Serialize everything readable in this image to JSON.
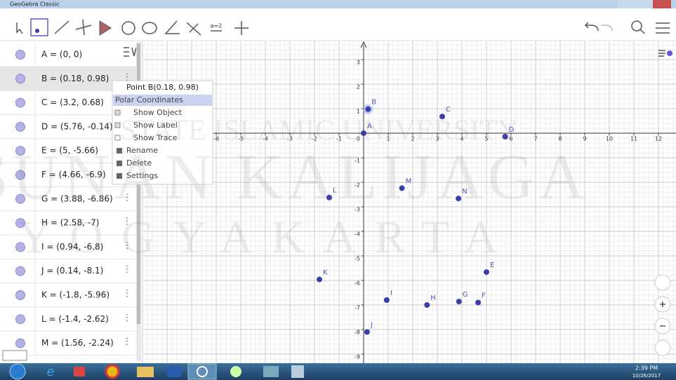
{
  "window": {
    "title": "GeoGebra Classic"
  },
  "toolbar": {
    "slider_icon": "a=2"
  },
  "algebra_view": {
    "rows": [
      "A = (0, 0)",
      "B = (0.18, 0.98)",
      "C = (3.2, 0.68)",
      "D = (5.76, -0.14)",
      "E = (5, -5.66)",
      "F = (4.66, -6.9)",
      "G = (3.88, -6.86)",
      "H = (2.58, -7)",
      "I = (0.94, -6.8)",
      "J = (0.14, -8.1)",
      "K = (-1.8, -5.96)",
      "L = (-1.4, -2.62)",
      "M = (1.56, -2.24)"
    ]
  },
  "context_menu": {
    "title": "Point B(0.18, 0.98)",
    "items": [
      "Polar Coordinates",
      "Show Object",
      "Show Label",
      "Show Trace",
      "Rename",
      "Delete",
      "Settings"
    ]
  },
  "graphics_view": {
    "origin_label": 0,
    "xticks": [
      -6,
      -5,
      -4,
      -3,
      -2,
      -1,
      1,
      2,
      3,
      4,
      5,
      6,
      7,
      8,
      9,
      10,
      11,
      12
    ],
    "yticks": [
      3,
      2,
      1,
      -1,
      -2,
      -3,
      -4,
      -5,
      -6,
      -7,
      -8,
      -9
    ],
    "points": [
      {
        "label": "A",
        "x": 0,
        "y": 0
      },
      {
        "label": "B",
        "x": 0.18,
        "y": 0.98
      },
      {
        "label": "C",
        "x": 3.2,
        "y": 0.68
      },
      {
        "label": "D",
        "x": 5.76,
        "y": -0.14
      },
      {
        "label": "E",
        "x": 5,
        "y": -5.66
      },
      {
        "label": "F",
        "x": 4.66,
        "y": -6.9
      },
      {
        "label": "G",
        "x": 3.88,
        "y": -6.86
      },
      {
        "label": "H",
        "x": 2.58,
        "y": -7
      },
      {
        "label": "I",
        "x": 0.94,
        "y": -6.8
      },
      {
        "label": "J",
        "x": 0.14,
        "y": -8.1
      },
      {
        "label": "K",
        "x": -1.8,
        "y": -5.96
      },
      {
        "label": "L",
        "x": -1.4,
        "y": -2.62
      },
      {
        "label": "M",
        "x": 1.56,
        "y": -2.24
      },
      {
        "label": "N",
        "x": 3.86,
        "y": -2.66
      }
    ]
  },
  "watermark": [
    "STATE ISLAMIC UNIVERSITY",
    "SUNAN KALIJAGA",
    "YOGYAKARTA"
  ],
  "taskbar": {
    "time": "2:39 PM",
    "date": "10/26/2017"
  }
}
